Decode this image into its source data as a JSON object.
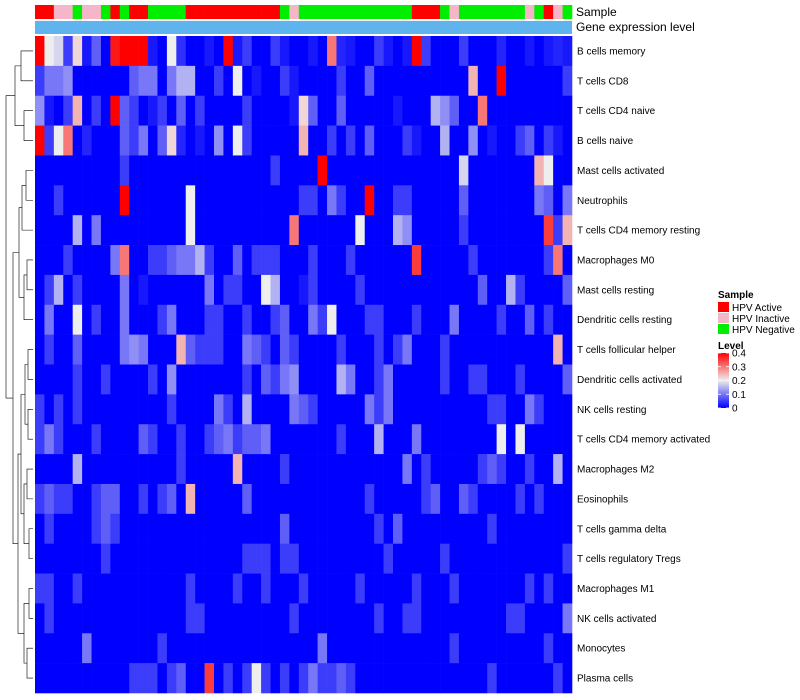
{
  "chart_data": {
    "type": "heatmap",
    "annotation_labels": [
      "Sample",
      "Gene expression level"
    ],
    "rows": [
      "B cells memory",
      "T cells CD8",
      "T cells CD4 naive",
      "B cells naive",
      "Mast cells activated",
      "Neutrophils",
      "T cells CD4 memory resting",
      "Macrophages M0",
      "Mast cells resting",
      "Dendritic cells resting",
      "T cells follicular helper",
      "Dendritic cells activated",
      "NK cells resting",
      "T cells CD4 memory activated",
      "Macrophages M2",
      "Eosinophils",
      "T cells gamma delta",
      "T cells regulatory  Tregs",
      "Macrophages M1",
      "NK cells activated",
      "Monocytes",
      "Plasma cells"
    ],
    "sample_groups": [
      "HPV Active",
      "HPV Active",
      "HPV Inactive",
      "HPV Inactive",
      "HPV Negative",
      "HPV Inactive",
      "HPV Inactive",
      "HPV Negative",
      "HPV Active",
      "HPV Negative",
      "HPV Active",
      "HPV Active",
      "HPV Negative",
      "HPV Negative",
      "HPV Negative",
      "HPV Negative",
      "HPV Active",
      "HPV Active",
      "HPV Active",
      "HPV Active",
      "HPV Active",
      "HPV Active",
      "HPV Active",
      "HPV Active",
      "HPV Active",
      "HPV Active",
      "HPV Negative",
      "HPV Inactive",
      "HPV Negative",
      "HPV Negative",
      "HPV Negative",
      "HPV Negative",
      "HPV Negative",
      "HPV Negative",
      "HPV Negative",
      "HPV Negative",
      "HPV Negative",
      "HPV Negative",
      "HPV Negative",
      "HPV Negative",
      "HPV Active",
      "HPV Active",
      "HPV Active",
      "HPV Negative",
      "HPV Inactive",
      "HPV Negative",
      "HPV Negative",
      "HPV Negative",
      "HPV Negative",
      "HPV Negative",
      "HPV Negative",
      "HPV Negative",
      "HPV Inactive",
      "HPV Negative",
      "HPV Active",
      "HPV Inactive",
      "HPV Negative"
    ],
    "values": [
      [
        0.4,
        0.2,
        0.18,
        0.05,
        0.22,
        0.02,
        0.08,
        0.0,
        0.38,
        0.4,
        0.4,
        0.4,
        0.02,
        0.0,
        0.2,
        0.04,
        0.0,
        0.0,
        0.02,
        0.0,
        0.4,
        0.02,
        0.05,
        0.0,
        0.0,
        0.05,
        0.02,
        0.0,
        0.0,
        0.02,
        0.0,
        0.3,
        0.03,
        0.02,
        0.0,
        0.0,
        0.05,
        0.02,
        0.0,
        0.02,
        0.4,
        0.05,
        0.0,
        0.0,
        0.0,
        0.05,
        0.0,
        0.0,
        0.0,
        0.03,
        0.0,
        0.0,
        0.02,
        0.0,
        0.02,
        0.03,
        0.02
      ],
      [
        0.05,
        0.1,
        0.1,
        0.12,
        0.0,
        0.0,
        0.0,
        0.0,
        0.0,
        0.0,
        0.08,
        0.1,
        0.1,
        0.0,
        0.1,
        0.15,
        0.15,
        0.0,
        0.0,
        0.05,
        0.0,
        0.2,
        0.0,
        0.02,
        0.0,
        0.0,
        0.05,
        0.02,
        0.0,
        0.0,
        0.0,
        0.0,
        0.05,
        0.0,
        0.0,
        0.08,
        0.0,
        0.0,
        0.0,
        0.0,
        0.0,
        0.0,
        0.0,
        0.0,
        0.0,
        0.0,
        0.25,
        0.0,
        0.0,
        0.4,
        0.0,
        0.0,
        0.0,
        0.0,
        0.0,
        0.0,
        0.05
      ],
      [
        0.12,
        0.02,
        0.0,
        0.05,
        0.25,
        0.0,
        0.05,
        0.0,
        0.4,
        0.08,
        0.05,
        0.0,
        0.02,
        0.05,
        0.0,
        0.08,
        0.0,
        0.05,
        0.0,
        0.0,
        0.0,
        0.0,
        0.05,
        0.0,
        0.0,
        0.0,
        0.0,
        0.02,
        0.22,
        0.08,
        0.0,
        0.0,
        0.08,
        0.0,
        0.0,
        0.0,
        0.0,
        0.0,
        0.02,
        0.0,
        0.0,
        0.0,
        0.15,
        0.12,
        0.08,
        0.0,
        0.0,
        0.3,
        0.0,
        0.0,
        0.0,
        0.0,
        0.0,
        0.0,
        0.0,
        0.0,
        0.0
      ],
      [
        0.4,
        0.05,
        0.2,
        0.3,
        0.0,
        0.03,
        0.0,
        0.0,
        0.0,
        0.08,
        0.05,
        0.1,
        0.0,
        0.08,
        0.22,
        0.03,
        0.0,
        0.02,
        0.0,
        0.12,
        0.0,
        0.2,
        0.05,
        0.0,
        0.0,
        0.0,
        0.0,
        0.0,
        0.25,
        0.0,
        0.0,
        0.05,
        0.0,
        0.05,
        0.0,
        0.08,
        0.0,
        0.0,
        0.0,
        0.05,
        0.02,
        0.0,
        0.0,
        0.15,
        0.0,
        0.0,
        0.12,
        0.0,
        0.02,
        0.0,
        0.0,
        0.05,
        0.08,
        0.0,
        0.05,
        0.02,
        0.0
      ],
      [
        0.0,
        0.0,
        0.0,
        0.0,
        0.0,
        0.0,
        0.0,
        0.0,
        0.0,
        0.05,
        0.0,
        0.0,
        0.0,
        0.0,
        0.0,
        0.0,
        0.0,
        0.0,
        0.0,
        0.0,
        0.0,
        0.0,
        0.0,
        0.0,
        0.0,
        0.05,
        0.0,
        0.0,
        0.0,
        0.0,
        0.4,
        0.0,
        0.0,
        0.0,
        0.0,
        0.0,
        0.0,
        0.0,
        0.0,
        0.0,
        0.0,
        0.0,
        0.0,
        0.0,
        0.0,
        0.18,
        0.0,
        0.0,
        0.0,
        0.0,
        0.0,
        0.0,
        0.0,
        0.25,
        0.2,
        0.0,
        0.0
      ],
      [
        0.0,
        0.0,
        0.05,
        0.0,
        0.0,
        0.0,
        0.0,
        0.0,
        0.0,
        0.4,
        0.0,
        0.0,
        0.0,
        0.0,
        0.0,
        0.0,
        0.2,
        0.0,
        0.0,
        0.0,
        0.0,
        0.0,
        0.0,
        0.0,
        0.0,
        0.0,
        0.0,
        0.0,
        0.05,
        0.05,
        0.0,
        0.1,
        0.05,
        0.0,
        0.0,
        0.4,
        0.0,
        0.0,
        0.05,
        0.05,
        0.0,
        0.0,
        0.0,
        0.0,
        0.0,
        0.08,
        0.0,
        0.0,
        0.0,
        0.0,
        0.0,
        0.0,
        0.0,
        0.1,
        0.08,
        0.0,
        0.1
      ],
      [
        0.0,
        0.0,
        0.0,
        0.0,
        0.15,
        0.0,
        0.1,
        0.0,
        0.0,
        0.0,
        0.0,
        0.0,
        0.0,
        0.0,
        0.0,
        0.0,
        0.2,
        0.0,
        0.0,
        0.0,
        0.0,
        0.0,
        0.0,
        0.0,
        0.0,
        0.0,
        0.0,
        0.3,
        0.0,
        0.0,
        0.0,
        0.0,
        0.0,
        0.0,
        0.2,
        0.0,
        0.0,
        0.0,
        0.15,
        0.12,
        0.0,
        0.0,
        0.0,
        0.0,
        0.0,
        0.05,
        0.0,
        0.0,
        0.0,
        0.0,
        0.0,
        0.0,
        0.0,
        0.0,
        0.35,
        0.05,
        0.25
      ],
      [
        0.0,
        0.0,
        0.0,
        0.05,
        0.0,
        0.0,
        0.0,
        0.0,
        0.1,
        0.3,
        0.0,
        0.0,
        0.05,
        0.05,
        0.08,
        0.1,
        0.1,
        0.15,
        0.05,
        0.0,
        0.0,
        0.08,
        0.0,
        0.05,
        0.05,
        0.05,
        0.0,
        0.0,
        0.0,
        0.05,
        0.0,
        0.0,
        0.0,
        0.05,
        0.0,
        0.0,
        0.0,
        0.0,
        0.0,
        0.0,
        0.35,
        0.0,
        0.0,
        0.0,
        0.0,
        0.0,
        0.05,
        0.0,
        0.0,
        0.0,
        0.0,
        0.0,
        0.0,
        0.0,
        0.05,
        0.3,
        0.0
      ],
      [
        0.0,
        0.05,
        0.15,
        0.0,
        0.05,
        0.0,
        0.0,
        0.0,
        0.0,
        0.1,
        0.0,
        0.02,
        0.0,
        0.0,
        0.0,
        0.0,
        0.0,
        0.0,
        0.1,
        0.0,
        0.05,
        0.05,
        0.0,
        0.0,
        0.2,
        0.15,
        0.0,
        0.0,
        0.02,
        0.05,
        0.0,
        0.0,
        0.0,
        0.0,
        0.05,
        0.0,
        0.0,
        0.0,
        0.0,
        0.0,
        0.0,
        0.0,
        0.0,
        0.0,
        0.0,
        0.0,
        0.0,
        0.08,
        0.0,
        0.0,
        0.15,
        0.05,
        0.0,
        0.0,
        0.0,
        0.0,
        0.08
      ],
      [
        0.0,
        0.1,
        0.0,
        0.0,
        0.2,
        0.0,
        0.05,
        0.0,
        0.0,
        0.1,
        0.0,
        0.0,
        0.0,
        0.05,
        0.1,
        0.0,
        0.0,
        0.0,
        0.05,
        0.05,
        0.0,
        0.0,
        0.05,
        0.0,
        0.0,
        0.05,
        0.08,
        0.0,
        0.0,
        0.1,
        0.05,
        0.2,
        0.0,
        0.0,
        0.0,
        0.05,
        0.05,
        0.0,
        0.0,
        0.0,
        0.05,
        0.0,
        0.0,
        0.0,
        0.1,
        0.0,
        0.0,
        0.0,
        0.0,
        0.05,
        0.0,
        0.0,
        0.08,
        0.0,
        0.05,
        0.0,
        0.0
      ],
      [
        0.0,
        0.05,
        0.0,
        0.0,
        0.08,
        0.0,
        0.0,
        0.0,
        0.0,
        0.1,
        0.12,
        0.1,
        0.0,
        0.0,
        0.0,
        0.25,
        0.08,
        0.05,
        0.05,
        0.05,
        0.0,
        0.0,
        0.1,
        0.08,
        0.05,
        0.0,
        0.08,
        0.05,
        0.0,
        0.0,
        0.0,
        0.0,
        0.05,
        0.0,
        0.0,
        0.0,
        0.05,
        0.0,
        0.05,
        0.1,
        0.0,
        0.0,
        0.0,
        0.05,
        0.0,
        0.0,
        0.0,
        0.0,
        0.0,
        0.0,
        0.0,
        0.0,
        0.0,
        0.0,
        0.0,
        0.25,
        0.0
      ],
      [
        0.0,
        0.0,
        0.0,
        0.0,
        0.05,
        0.0,
        0.0,
        0.05,
        0.0,
        0.0,
        0.0,
        0.0,
        0.05,
        0.0,
        0.12,
        0.0,
        0.0,
        0.0,
        0.0,
        0.0,
        0.0,
        0.0,
        0.05,
        0.0,
        0.08,
        0.05,
        0.1,
        0.12,
        0.0,
        0.0,
        0.0,
        0.0,
        0.15,
        0.1,
        0.0,
        0.0,
        0.05,
        0.1,
        0.0,
        0.0,
        0.0,
        0.0,
        0.0,
        0.05,
        0.0,
        0.0,
        0.05,
        0.05,
        0.0,
        0.0,
        0.0,
        0.05,
        0.0,
        0.0,
        0.0,
        0.0,
        0.08
      ],
      [
        0.05,
        0.0,
        0.05,
        0.0,
        0.05,
        0.0,
        0.0,
        0.0,
        0.0,
        0.0,
        0.0,
        0.0,
        0.0,
        0.0,
        0.05,
        0.0,
        0.0,
        0.0,
        0.0,
        0.1,
        0.05,
        0.0,
        0.15,
        0.0,
        0.0,
        0.0,
        0.0,
        0.1,
        0.08,
        0.05,
        0.0,
        0.0,
        0.0,
        0.0,
        0.0,
        0.1,
        0.05,
        0.1,
        0.0,
        0.0,
        0.0,
        0.0,
        0.0,
        0.0,
        0.0,
        0.0,
        0.0,
        0.0,
        0.05,
        0.05,
        0.0,
        0.0,
        0.1,
        0.05,
        0.0,
        0.0,
        0.0
      ],
      [
        0.05,
        0.1,
        0.05,
        0.0,
        0.0,
        0.0,
        0.05,
        0.0,
        0.0,
        0.0,
        0.0,
        0.08,
        0.05,
        0.0,
        0.0,
        0.05,
        0.0,
        0.0,
        0.05,
        0.08,
        0.1,
        0.05,
        0.08,
        0.08,
        0.1,
        0.0,
        0.0,
        0.0,
        0.0,
        0.0,
        0.0,
        0.0,
        0.05,
        0.0,
        0.0,
        0.0,
        0.15,
        0.0,
        0.0,
        0.0,
        0.1,
        0.0,
        0.0,
        0.0,
        0.0,
        0.0,
        0.0,
        0.0,
        0.0,
        0.2,
        0.0,
        0.2,
        0.0,
        0.0,
        0.0,
        0.0,
        0.0
      ],
      [
        0.0,
        0.0,
        0.0,
        0.0,
        0.15,
        0.0,
        0.0,
        0.0,
        0.0,
        0.0,
        0.0,
        0.0,
        0.0,
        0.0,
        0.0,
        0.05,
        0.0,
        0.0,
        0.0,
        0.0,
        0.0,
        0.25,
        0.0,
        0.0,
        0.0,
        0.0,
        0.05,
        0.0,
        0.0,
        0.0,
        0.0,
        0.0,
        0.0,
        0.0,
        0.0,
        0.0,
        0.0,
        0.0,
        0.0,
        0.1,
        0.0,
        0.05,
        0.0,
        0.0,
        0.0,
        0.0,
        0.0,
        0.05,
        0.08,
        0.05,
        0.0,
        0.0,
        0.05,
        0.0,
        0.0,
        0.15,
        0.0
      ],
      [
        0.05,
        0.08,
        0.05,
        0.05,
        0.0,
        0.0,
        0.05,
        0.08,
        0.08,
        0.0,
        0.0,
        0.05,
        0.0,
        0.05,
        0.08,
        0.0,
        0.25,
        0.0,
        0.0,
        0.0,
        0.0,
        0.0,
        0.08,
        0.0,
        0.0,
        0.0,
        0.0,
        0.0,
        0.0,
        0.0,
        0.0,
        0.0,
        0.0,
        0.0,
        0.0,
        0.05,
        0.0,
        0.0,
        0.0,
        0.0,
        0.0,
        0.05,
        0.08,
        0.0,
        0.0,
        0.08,
        0.05,
        0.0,
        0.0,
        0.0,
        0.0,
        0.05,
        0.0,
        0.05,
        0.0,
        0.0,
        0.0
      ],
      [
        0.0,
        0.05,
        0.0,
        0.0,
        0.0,
        0.0,
        0.05,
        0.08,
        0.05,
        0.0,
        0.0,
        0.0,
        0.0,
        0.0,
        0.0,
        0.0,
        0.0,
        0.0,
        0.0,
        0.0,
        0.0,
        0.0,
        0.0,
        0.0,
        0.0,
        0.0,
        0.08,
        0.0,
        0.0,
        0.0,
        0.0,
        0.0,
        0.0,
        0.0,
        0.0,
        0.0,
        0.05,
        0.0,
        0.08,
        0.0,
        0.0,
        0.0,
        0.0,
        0.0,
        0.0,
        0.0,
        0.0,
        0.0,
        0.05,
        0.0,
        0.0,
        0.0,
        0.0,
        0.0,
        0.0,
        0.0,
        0.0
      ],
      [
        0.0,
        0.0,
        0.0,
        0.0,
        0.0,
        0.0,
        0.0,
        0.05,
        0.0,
        0.0,
        0.0,
        0.0,
        0.0,
        0.0,
        0.0,
        0.0,
        0.0,
        0.0,
        0.0,
        0.0,
        0.0,
        0.0,
        0.05,
        0.05,
        0.05,
        0.0,
        0.05,
        0.05,
        0.0,
        0.0,
        0.0,
        0.0,
        0.0,
        0.0,
        0.0,
        0.0,
        0.0,
        0.05,
        0.0,
        0.0,
        0.0,
        0.0,
        0.0,
        0.05,
        0.0,
        0.0,
        0.0,
        0.0,
        0.0,
        0.0,
        0.0,
        0.0,
        0.0,
        0.0,
        0.0,
        0.0,
        0.05
      ],
      [
        0.05,
        0.05,
        0.0,
        0.0,
        0.05,
        0.0,
        0.0,
        0.0,
        0.0,
        0.0,
        0.0,
        0.0,
        0.0,
        0.0,
        0.0,
        0.0,
        0.05,
        0.0,
        0.0,
        0.0,
        0.0,
        0.05,
        0.0,
        0.0,
        0.05,
        0.0,
        0.0,
        0.0,
        0.05,
        0.0,
        0.0,
        0.0,
        0.0,
        0.0,
        0.05,
        0.0,
        0.0,
        0.0,
        0.0,
        0.0,
        0.05,
        0.0,
        0.0,
        0.0,
        0.05,
        0.0,
        0.0,
        0.0,
        0.0,
        0.0,
        0.0,
        0.0,
        0.05,
        0.0,
        0.05,
        0.0,
        0.0
      ],
      [
        0.0,
        0.05,
        0.0,
        0.0,
        0.0,
        0.0,
        0.0,
        0.0,
        0.0,
        0.0,
        0.0,
        0.0,
        0.0,
        0.0,
        0.0,
        0.0,
        0.05,
        0.05,
        0.0,
        0.0,
        0.0,
        0.0,
        0.0,
        0.0,
        0.0,
        0.0,
        0.0,
        0.05,
        0.0,
        0.0,
        0.0,
        0.0,
        0.0,
        0.0,
        0.0,
        0.0,
        0.05,
        0.0,
        0.0,
        0.05,
        0.05,
        0.0,
        0.0,
        0.0,
        0.0,
        0.0,
        0.0,
        0.0,
        0.0,
        0.0,
        0.05,
        0.05,
        0.0,
        0.0,
        0.0,
        0.0,
        0.1
      ],
      [
        0.0,
        0.0,
        0.0,
        0.0,
        0.0,
        0.1,
        0.0,
        0.0,
        0.0,
        0.0,
        0.0,
        0.0,
        0.0,
        0.05,
        0.0,
        0.0,
        0.0,
        0.0,
        0.0,
        0.0,
        0.0,
        0.0,
        0.0,
        0.0,
        0.0,
        0.0,
        0.0,
        0.0,
        0.0,
        0.0,
        0.1,
        0.0,
        0.0,
        0.0,
        0.0,
        0.0,
        0.0,
        0.0,
        0.0,
        0.0,
        0.0,
        0.0,
        0.0,
        0.0,
        0.05,
        0.0,
        0.0,
        0.0,
        0.0,
        0.0,
        0.0,
        0.0,
        0.0,
        0.0,
        0.05,
        0.0,
        0.0
      ],
      [
        0.0,
        0.0,
        0.0,
        0.0,
        0.0,
        0.0,
        0.0,
        0.0,
        0.0,
        0.0,
        0.05,
        0.05,
        0.05,
        0.0,
        0.05,
        0.08,
        0.0,
        0.0,
        0.35,
        0.0,
        0.05,
        0.0,
        0.05,
        0.2,
        0.05,
        0.0,
        0.05,
        0.0,
        0.05,
        0.1,
        0.05,
        0.05,
        0.08,
        0.05,
        0.0,
        0.0,
        0.0,
        0.0,
        0.0,
        0.0,
        0.0,
        0.0,
        0.0,
        0.0,
        0.0,
        0.0,
        0.0,
        0.0,
        0.05,
        0.0,
        0.0,
        0.0,
        0.0,
        0.0,
        0.0,
        0.05,
        0.0
      ]
    ],
    "color_scale": {
      "min": 0,
      "max": 0.4,
      "colors": [
        "#0000ff",
        "#eeeeee",
        "#ff0000"
      ]
    },
    "legend": {
      "placement": "right",
      "sample": {
        "title": "Sample",
        "items": [
          {
            "label": "HPV Active",
            "color": "#ff0000"
          },
          {
            "label": "HPV Inactive",
            "color": "#f4b6c8"
          },
          {
            "label": "HPV Negative",
            "color": "#00ee00"
          }
        ]
      },
      "level": {
        "title": "Level",
        "ticks": [
          "0.4",
          "0.3",
          "0.2",
          "0.1",
          "0"
        ],
        "tick_values": [
          0.4,
          0.3,
          0.2,
          0.1,
          0
        ]
      }
    },
    "gene_expression_color": "#5fb4ee"
  }
}
